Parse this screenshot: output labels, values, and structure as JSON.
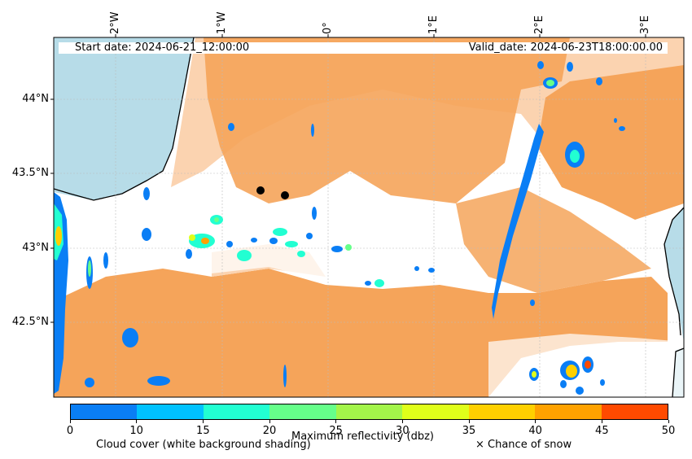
{
  "header": {
    "start_date": "Start date: 2024-06-21_12:00:00",
    "valid_date": "Valid_date: 2024-06-23T18:00:00.00"
  },
  "axes": {
    "lon_labels": [
      "2°W",
      "1°W",
      "0°",
      "1°E",
      "2°E",
      "3°E"
    ],
    "lat_labels": [
      "44°N",
      "43.5°N",
      "43°N",
      "42.5°N"
    ]
  },
  "colorbar": {
    "ticks": [
      "0",
      "10",
      "15",
      "20",
      "25",
      "30",
      "35",
      "40",
      "45",
      "50"
    ],
    "colors": [
      "#0a7ef5",
      "#00c2ff",
      "#22ffd2",
      "#66ff8a",
      "#a3f54a",
      "#e0ff1a",
      "#ffd000",
      "#ffa200",
      "#ff4a00"
    ],
    "label": "Maximum reflectivity (dbz)"
  },
  "legend": {
    "cloud_cover": "Cloud cover (white background shading)",
    "snow": "× Chance of snow"
  },
  "map_colors": {
    "sea": "#b7dce8",
    "rain_orange": "#f5a45a",
    "light_orange": "#fbd3b0"
  }
}
